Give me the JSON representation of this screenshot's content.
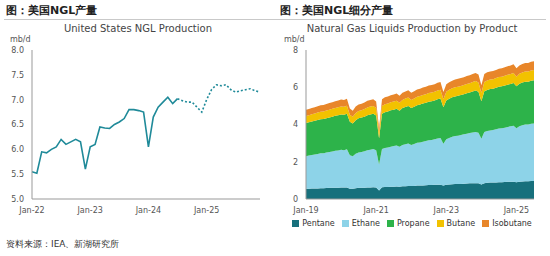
{
  "source": "资料来源：IEA、新湖研究所",
  "chart_data": [
    {
      "type": "line",
      "title": "图：美国NGL产量",
      "subtitle": "United States NGL Production",
      "ylabel": "mb/d",
      "categories": [
        "Jan-22",
        null,
        null,
        null,
        null,
        null,
        null,
        null,
        null,
        null,
        null,
        null,
        "Jan-23",
        null,
        null,
        null,
        null,
        null,
        null,
        null,
        null,
        null,
        null,
        null,
        "Jan-24",
        null,
        null,
        null,
        null,
        null,
        null,
        null,
        null,
        null,
        null,
        null,
        "Jan-25",
        null,
        null,
        null,
        null,
        null,
        null,
        null,
        null,
        null,
        null,
        null
      ],
      "series": [
        {
          "color": "#1f8a99",
          "line_style": "solid",
          "values": [
            5.55,
            5.52,
            5.95,
            5.93,
            6.0,
            6.05,
            6.2,
            6.1,
            6.15,
            6.2,
            6.15,
            5.6,
            6.05,
            6.1,
            6.45,
            6.43,
            6.42,
            6.5,
            6.55,
            6.62,
            6.8,
            6.8,
            6.78,
            6.75,
            6.05,
            6.65,
            6.85,
            6.95,
            7.05,
            6.92,
            7.02,
            null,
            null,
            null,
            null,
            null,
            null,
            null,
            null,
            null,
            null,
            null,
            null,
            null,
            null,
            null,
            null,
            null
          ]
        },
        {
          "color": "#1f8a99",
          "line_style": "dotted",
          "values": [
            null,
            null,
            null,
            null,
            null,
            null,
            null,
            null,
            null,
            null,
            null,
            null,
            null,
            null,
            null,
            null,
            null,
            null,
            null,
            null,
            null,
            null,
            null,
            null,
            null,
            null,
            null,
            null,
            null,
            null,
            7.02,
            6.98,
            6.95,
            6.95,
            6.85,
            6.75,
            7.0,
            7.2,
            7.3,
            7.28,
            7.3,
            7.2,
            7.15,
            7.18,
            7.2,
            7.22,
            7.18,
            7.15
          ]
        }
      ],
      "ylim": [
        5,
        8
      ],
      "yticks": [
        {
          "value": 5,
          "label": "5.0"
        },
        {
          "value": 5.5,
          "label": "5.5"
        },
        {
          "value": 6,
          "label": "6.0"
        },
        {
          "value": 6.5,
          "label": "6.5"
        },
        {
          "value": 7,
          "label": "7.0"
        },
        {
          "value": 7.5,
          "label": "7.5"
        },
        {
          "value": 8,
          "label": "8.0"
        }
      ],
      "grid": false
    },
    {
      "type": "area",
      "stacked": true,
      "title": "图：美国NGL细分产量",
      "subtitle": "Natural Gas Liquids Production by Product",
      "ylabel": "mb/d",
      "categories": [
        "Jan-19",
        null,
        null,
        null,
        null,
        null,
        null,
        null,
        null,
        null,
        null,
        null,
        null,
        null,
        null,
        null,
        null,
        null,
        null,
        null,
        null,
        null,
        null,
        null,
        "Jan-21",
        null,
        null,
        null,
        null,
        null,
        null,
        null,
        null,
        null,
        null,
        null,
        null,
        null,
        null,
        null,
        null,
        null,
        null,
        null,
        null,
        null,
        null,
        null,
        "Jan-23",
        null,
        null,
        null,
        null,
        null,
        null,
        null,
        null,
        null,
        null,
        null,
        null,
        null,
        null,
        null,
        null,
        null,
        null,
        null,
        null,
        null,
        null,
        null,
        "Jan-25",
        null,
        null,
        null,
        null,
        null,
        null
      ],
      "series": [
        {
          "name": "Pentane",
          "color": "#17707c",
          "values": [
            0.55,
            0.55,
            0.56,
            0.57,
            0.57,
            0.58,
            0.58,
            0.59,
            0.6,
            0.6,
            0.61,
            0.61,
            0.62,
            0.62,
            0.62,
            0.55,
            0.55,
            0.58,
            0.6,
            0.6,
            0.61,
            0.62,
            0.62,
            0.63,
            0.62,
            0.45,
            0.63,
            0.64,
            0.65,
            0.66,
            0.66,
            0.67,
            0.66,
            0.68,
            0.69,
            0.7,
            0.7,
            0.7,
            0.72,
            0.72,
            0.73,
            0.74,
            0.75,
            0.75,
            0.76,
            0.77,
            0.77,
            0.72,
            0.76,
            0.78,
            0.79,
            0.8,
            0.8,
            0.81,
            0.82,
            0.83,
            0.84,
            0.85,
            0.85,
            0.84,
            0.78,
            0.85,
            0.87,
            0.88,
            0.88,
            0.89,
            0.9,
            0.9,
            0.91,
            0.92,
            0.92,
            0.93,
            0.9,
            0.93,
            0.94,
            0.95,
            0.95,
            0.96,
            0.96
          ]
        },
        {
          "name": "Ethane",
          "color": "#8dd3e8",
          "values": [
            1.75,
            1.78,
            1.8,
            1.82,
            1.85,
            1.87,
            1.88,
            1.9,
            1.92,
            1.95,
            1.98,
            2.0,
            2.02,
            2.0,
            2.05,
            1.8,
            1.75,
            1.85,
            1.9,
            1.92,
            1.95,
            2.0,
            2.02,
            2.05,
            2.0,
            1.4,
            2.05,
            2.1,
            2.12,
            2.15,
            2.18,
            2.2,
            2.15,
            2.22,
            2.25,
            2.28,
            2.2,
            2.25,
            2.3,
            2.32,
            2.35,
            2.38,
            2.4,
            2.42,
            2.45,
            2.48,
            2.5,
            2.25,
            2.45,
            2.5,
            2.55,
            2.58,
            2.6,
            2.62,
            2.65,
            2.68,
            2.7,
            2.72,
            2.75,
            2.72,
            2.45,
            2.75,
            2.78,
            2.8,
            2.82,
            2.85,
            2.88,
            2.9,
            2.92,
            2.95,
            2.98,
            3.0,
            2.9,
            2.98,
            3.02,
            3.05,
            3.05,
            3.08,
            3.1
          ]
        },
        {
          "name": "Propane",
          "color": "#2db34a",
          "values": [
            1.78,
            1.79,
            1.8,
            1.81,
            1.82,
            1.83,
            1.84,
            1.85,
            1.86,
            1.87,
            1.88,
            1.89,
            1.9,
            1.9,
            1.91,
            1.8,
            1.75,
            1.8,
            1.83,
            1.85,
            1.86,
            1.88,
            1.9,
            1.9,
            1.86,
            1.4,
            1.9,
            1.92,
            1.93,
            1.95,
            1.95,
            1.97,
            1.93,
            1.98,
            2.0,
            2.02,
            1.98,
            2.0,
            2.02,
            2.03,
            2.05,
            2.05,
            2.07,
            2.08,
            2.08,
            2.1,
            2.12,
            1.95,
            2.08,
            2.1,
            2.12,
            2.13,
            2.14,
            2.15,
            2.15,
            2.17,
            2.18,
            2.2,
            2.22,
            2.2,
            2.02,
            2.18,
            2.2,
            2.22,
            2.22,
            2.23,
            2.25,
            2.25,
            2.26,
            2.27,
            2.28,
            2.3,
            2.25,
            2.28,
            2.29,
            2.3,
            2.3,
            2.31,
            2.31
          ]
        },
        {
          "name": "Butane",
          "color": "#f2c200",
          "values": [
            0.38,
            0.38,
            0.39,
            0.39,
            0.4,
            0.4,
            0.4,
            0.41,
            0.41,
            0.42,
            0.42,
            0.42,
            0.43,
            0.43,
            0.43,
            0.38,
            0.37,
            0.39,
            0.4,
            0.4,
            0.41,
            0.41,
            0.42,
            0.42,
            0.41,
            0.3,
            0.42,
            0.43,
            0.43,
            0.44,
            0.44,
            0.44,
            0.43,
            0.44,
            0.45,
            0.45,
            0.44,
            0.45,
            0.45,
            0.46,
            0.46,
            0.46,
            0.47,
            0.47,
            0.47,
            0.48,
            0.48,
            0.44,
            0.47,
            0.48,
            0.48,
            0.49,
            0.49,
            0.49,
            0.5,
            0.5,
            0.5,
            0.51,
            0.51,
            0.5,
            0.46,
            0.5,
            0.51,
            0.51,
            0.51,
            0.52,
            0.52,
            0.52,
            0.53,
            0.53,
            0.53,
            0.54,
            0.52,
            0.53,
            0.54,
            0.54,
            0.54,
            0.55,
            0.55
          ]
        },
        {
          "name": "Isobutane",
          "color": "#e8862a",
          "values": [
            0.33,
            0.33,
            0.34,
            0.34,
            0.34,
            0.35,
            0.35,
            0.35,
            0.36,
            0.36,
            0.36,
            0.37,
            0.37,
            0.37,
            0.37,
            0.33,
            0.32,
            0.34,
            0.35,
            0.35,
            0.35,
            0.36,
            0.36,
            0.36,
            0.35,
            0.26,
            0.36,
            0.37,
            0.37,
            0.37,
            0.38,
            0.38,
            0.37,
            0.38,
            0.38,
            0.39,
            0.38,
            0.38,
            0.39,
            0.39,
            0.39,
            0.4,
            0.4,
            0.4,
            0.4,
            0.41,
            0.41,
            0.38,
            0.4,
            0.41,
            0.41,
            0.41,
            0.42,
            0.42,
            0.42,
            0.43,
            0.43,
            0.43,
            0.44,
            0.43,
            0.4,
            0.43,
            0.44,
            0.44,
            0.44,
            0.44,
            0.45,
            0.45,
            0.45,
            0.46,
            0.46,
            0.46,
            0.45,
            0.45,
            0.46,
            0.46,
            0.46,
            0.47,
            0.47
          ]
        }
      ],
      "ylim": [
        0,
        8
      ],
      "yticks": [
        0,
        2,
        4,
        6,
        8
      ],
      "legend": "bottom",
      "grid": false
    }
  ]
}
